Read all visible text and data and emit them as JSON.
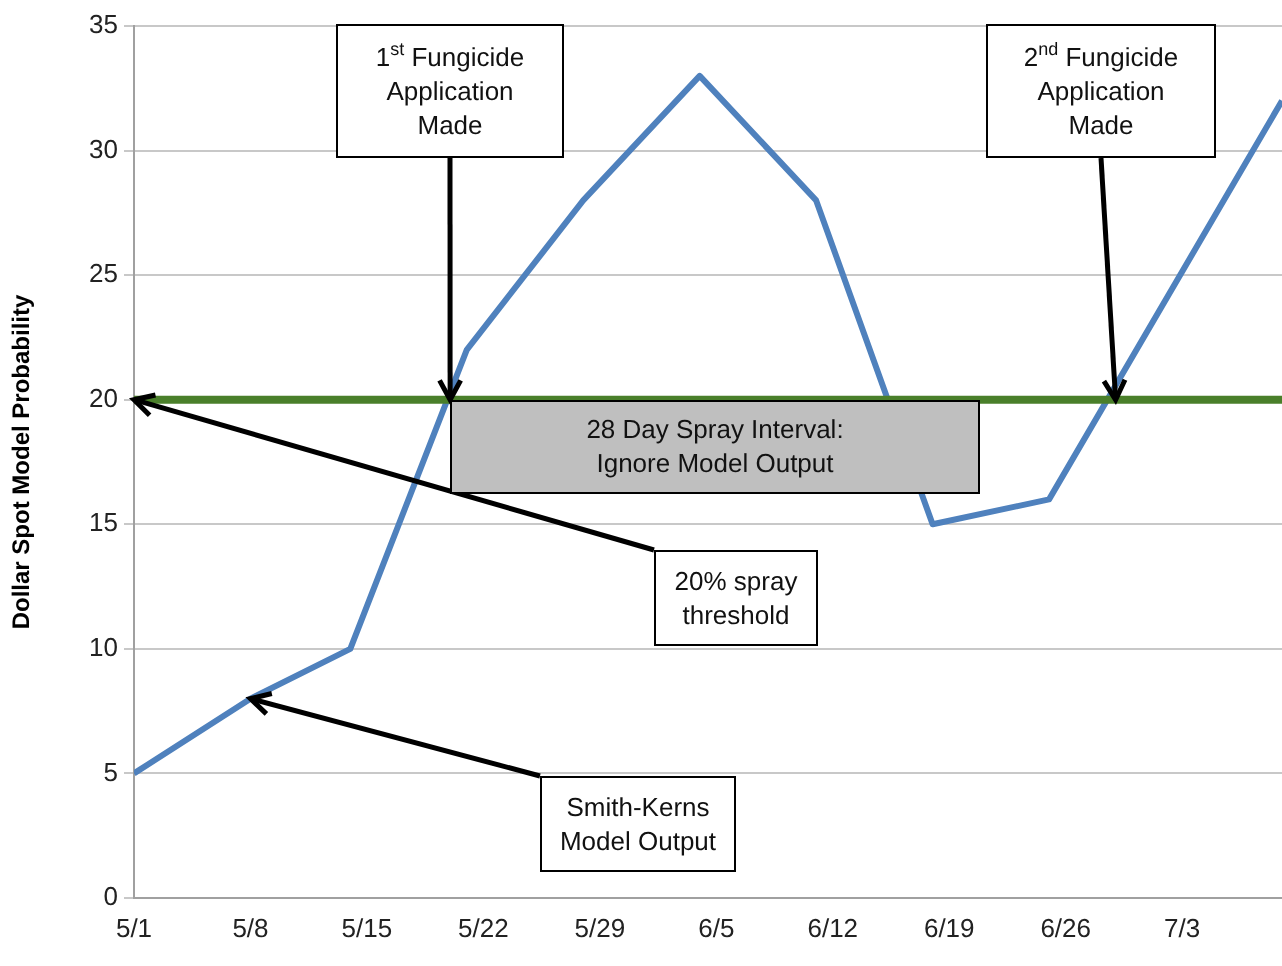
{
  "chart_data": {
    "type": "line",
    "ylabel": "Dollar Spot Model Probability",
    "x": [
      "--05-01",
      "--05-08",
      "--05-14",
      "--05-21",
      "--05-28",
      "--06-04",
      "--06-11",
      "--06-18",
      "--06-25",
      "--07-09"
    ],
    "series": [
      {
        "color": "#4f81bd",
        "values": [
          5,
          8,
          10,
          22,
          28,
          33,
          28,
          15,
          16,
          32
        ]
      }
    ],
    "xlim": [
      "--05-01",
      "--07-09"
    ],
    "xticks": [
      {
        "value": "--05-01",
        "label": "5/1"
      },
      {
        "value": "--05-08",
        "label": "5/8"
      },
      {
        "value": "--05-15",
        "label": "5/15"
      },
      {
        "value": "--05-22",
        "label": "5/22"
      },
      {
        "value": "--05-29",
        "label": "5/29"
      },
      {
        "value": "--06-05",
        "label": "6/5"
      },
      {
        "value": "--06-12",
        "label": "6/12"
      },
      {
        "value": "--06-19",
        "label": "6/19"
      },
      {
        "value": "--06-26",
        "label": "6/26"
      },
      {
        "value": "--07-03",
        "label": "7/3"
      }
    ],
    "ylim": [
      0,
      35
    ],
    "yticks": [
      0,
      5,
      10,
      15,
      20,
      25,
      30,
      35
    ],
    "ref_lines": [
      {
        "axis": "y",
        "value": 20,
        "color": "#4a7f2a"
      }
    ],
    "annotations": [
      {
        "text": "1$^{st}$ Fungicide\nApplication\nMade",
        "x": "--05-20",
        "y": 20
      },
      {
        "text": "2$^{nd}$ Fungicide\nApplication\nMade",
        "x": "--06-29",
        "y": 20
      },
      {
        "text": "20% spray\nthreshold",
        "x": "--05-01",
        "y": 20
      },
      {
        "text": "Smith-Kerns\nModel Output",
        "x": "--05-08",
        "y": 8
      },
      "28 Day Spray Interval:\nIgnore Model Output"
    ],
    "grid": "y",
    "legend": false,
    "marker": "none",
    "line_style": "solid"
  }
}
